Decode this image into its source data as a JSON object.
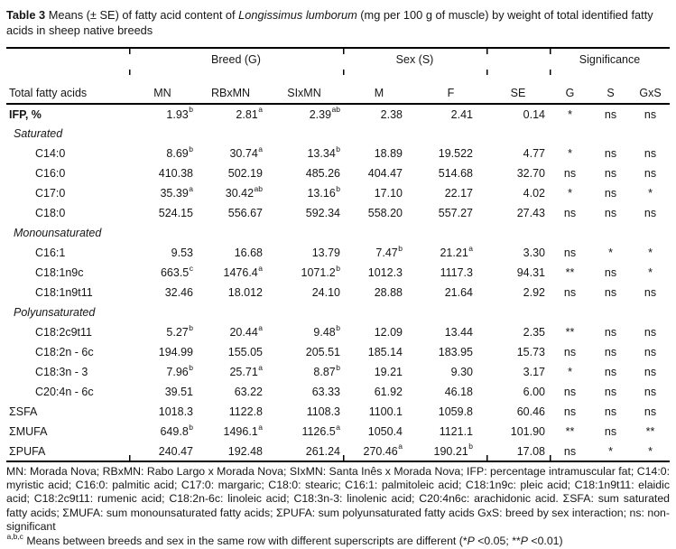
{
  "colors": {
    "text": "#161616",
    "rule": "#000000",
    "background": "#ffffff"
  },
  "title": {
    "segments": [
      {
        "t": "Table 3 ",
        "b": true
      },
      {
        "t": "Means (± SE) of fatty acid content of "
      },
      {
        "t": "Longissimus lumborum",
        "i": true
      },
      {
        "t": " (mg per 100 g of muscle) by weight of total identified fatty acids in sheep native breeds"
      }
    ]
  },
  "table": {
    "groups": [
      {
        "label": "",
        "span": 1
      },
      {
        "label": "Breed (G)",
        "span": 3
      },
      {
        "label": "Sex (S)",
        "span": 2
      },
      {
        "label": "",
        "span": 1
      },
      {
        "label": "Significance",
        "span": 3
      }
    ],
    "columns": [
      "Total fatty acids",
      "MN",
      "RBxMN",
      "SIxMN",
      "M",
      "F",
      "SE",
      "G",
      "S",
      "GxS"
    ],
    "rows": [
      {
        "type": "data",
        "label": "IFP, %",
        "bold": true,
        "cells": [
          {
            "v": "1.93",
            "sup": "b"
          },
          {
            "v": "2.81",
            "sup": "a"
          },
          {
            "v": "2.39",
            "sup": "ab"
          },
          {
            "v": "2.38"
          },
          {
            "v": "2.41"
          },
          {
            "v": "0.14"
          },
          {
            "v": "*"
          },
          {
            "v": "ns"
          },
          {
            "v": "ns"
          }
        ]
      },
      {
        "type": "section",
        "label": "Saturated"
      },
      {
        "type": "data",
        "label": "C14:0",
        "indent": true,
        "cells": [
          {
            "v": "8.69",
            "sup": "b"
          },
          {
            "v": "30.74",
            "sup": "a"
          },
          {
            "v": "13.34",
            "sup": "b"
          },
          {
            "v": "18.89"
          },
          {
            "v": "19.522"
          },
          {
            "v": "4.77"
          },
          {
            "v": "*"
          },
          {
            "v": "ns"
          },
          {
            "v": "ns"
          }
        ]
      },
      {
        "type": "data",
        "label": "C16:0",
        "indent": true,
        "cells": [
          {
            "v": "410.38"
          },
          {
            "v": "502.19"
          },
          {
            "v": "485.26"
          },
          {
            "v": "404.47"
          },
          {
            "v": "514.68"
          },
          {
            "v": "32.70"
          },
          {
            "v": "ns"
          },
          {
            "v": "ns"
          },
          {
            "v": "ns"
          }
        ]
      },
      {
        "type": "data",
        "label": "C17:0",
        "indent": true,
        "cells": [
          {
            "v": "35.39",
            "sup": "a"
          },
          {
            "v": "30.42",
            "sup": "ab"
          },
          {
            "v": "13.16",
            "sup": "b"
          },
          {
            "v": "17.10"
          },
          {
            "v": "22.17"
          },
          {
            "v": "4.02"
          },
          {
            "v": "*"
          },
          {
            "v": "ns"
          },
          {
            "v": "*"
          }
        ]
      },
      {
        "type": "data",
        "label": "C18:0",
        "indent": true,
        "cells": [
          {
            "v": "524.15"
          },
          {
            "v": "556.67"
          },
          {
            "v": "592.34"
          },
          {
            "v": "558.20"
          },
          {
            "v": "557.27"
          },
          {
            "v": "27.43"
          },
          {
            "v": "ns"
          },
          {
            "v": "ns"
          },
          {
            "v": "ns"
          }
        ]
      },
      {
        "type": "section",
        "label": "Monounsaturated"
      },
      {
        "type": "data",
        "label": "C16:1",
        "indent": true,
        "cells": [
          {
            "v": "9.53"
          },
          {
            "v": "16.68"
          },
          {
            "v": "13.79"
          },
          {
            "v": "7.47",
            "sup": "b"
          },
          {
            "v": "21.21",
            "sup": "a"
          },
          {
            "v": "3.30"
          },
          {
            "v": "ns"
          },
          {
            "v": "*"
          },
          {
            "v": "*"
          }
        ]
      },
      {
        "type": "data",
        "label": "C18:1n9c",
        "indent": true,
        "cells": [
          {
            "v": "663.5",
            "sup": "c"
          },
          {
            "v": "1476.4",
            "sup": "a"
          },
          {
            "v": "1071.2",
            "sup": "b"
          },
          {
            "v": "1012.3"
          },
          {
            "v": "1117.3"
          },
          {
            "v": "94.31"
          },
          {
            "v": "**"
          },
          {
            "v": "ns"
          },
          {
            "v": "*"
          }
        ]
      },
      {
        "type": "data",
        "label": "C18:1n9t11",
        "indent": true,
        "cells": [
          {
            "v": "32.46"
          },
          {
            "v": "18.012"
          },
          {
            "v": "24.10"
          },
          {
            "v": "28.88"
          },
          {
            "v": "21.64"
          },
          {
            "v": "2.92"
          },
          {
            "v": "ns"
          },
          {
            "v": "ns"
          },
          {
            "v": "ns"
          }
        ]
      },
      {
        "type": "section",
        "label": "Polyunsaturated"
      },
      {
        "type": "data",
        "label": "C18:2c9t11",
        "indent": true,
        "cells": [
          {
            "v": "5.27",
            "sup": "b"
          },
          {
            "v": "20.44",
            "sup": "a"
          },
          {
            "v": "9.48",
            "sup": "b"
          },
          {
            "v": "12.09"
          },
          {
            "v": "13.44"
          },
          {
            "v": "2.35"
          },
          {
            "v": "**"
          },
          {
            "v": "ns"
          },
          {
            "v": "ns"
          }
        ]
      },
      {
        "type": "data",
        "label": "C18:2n - 6c",
        "indent": true,
        "cells": [
          {
            "v": "194.99"
          },
          {
            "v": "155.05"
          },
          {
            "v": "205.51"
          },
          {
            "v": "185.14"
          },
          {
            "v": "183.95"
          },
          {
            "v": "15.73"
          },
          {
            "v": "ns"
          },
          {
            "v": "ns"
          },
          {
            "v": "ns"
          }
        ]
      },
      {
        "type": "data",
        "label": "C18:3n - 3",
        "indent": true,
        "cells": [
          {
            "v": "7.96",
            "sup": "b"
          },
          {
            "v": "25.71",
            "sup": "a"
          },
          {
            "v": "8.87",
            "sup": "b"
          },
          {
            "v": "19.21"
          },
          {
            "v": "9.30"
          },
          {
            "v": "3.17"
          },
          {
            "v": "*"
          },
          {
            "v": "ns"
          },
          {
            "v": "ns"
          }
        ]
      },
      {
        "type": "data",
        "label": "C20:4n - 6c",
        "indent": true,
        "cells": [
          {
            "v": "39.51"
          },
          {
            "v": "63.22"
          },
          {
            "v": "63.33"
          },
          {
            "v": "61.92"
          },
          {
            "v": "46.18"
          },
          {
            "v": "6.00"
          },
          {
            "v": "ns"
          },
          {
            "v": "ns"
          },
          {
            "v": "ns"
          }
        ]
      },
      {
        "type": "data",
        "label": "ΣSFA",
        "cells": [
          {
            "v": "1018.3"
          },
          {
            "v": "1122.8"
          },
          {
            "v": "1108.3"
          },
          {
            "v": "1100.1"
          },
          {
            "v": "1059.8"
          },
          {
            "v": "60.46"
          },
          {
            "v": "ns"
          },
          {
            "v": "ns"
          },
          {
            "v": "ns"
          }
        ]
      },
      {
        "type": "data",
        "label": "ΣMUFA",
        "cells": [
          {
            "v": "649.8",
            "sup": "b"
          },
          {
            "v": "1496.1",
            "sup": "a"
          },
          {
            "v": "1126.5",
            "sup": "a"
          },
          {
            "v": "1050.4"
          },
          {
            "v": "1121.1"
          },
          {
            "v": "101.90"
          },
          {
            "v": "**"
          },
          {
            "v": "ns"
          },
          {
            "v": "**"
          }
        ]
      },
      {
        "type": "data",
        "label": "ΣPUFA",
        "cells": [
          {
            "v": "240.47"
          },
          {
            "v": "192.48"
          },
          {
            "v": "261.24"
          },
          {
            "v": "270.46",
            "sup": "a"
          },
          {
            "v": "190.21",
            "sup": "b"
          },
          {
            "v": "17.08"
          },
          {
            "v": "ns"
          },
          {
            "v": "*"
          },
          {
            "v": "*"
          }
        ]
      }
    ]
  },
  "footnotes": {
    "abbreviations": "MN: Morada Nova; RBxMN: Rabo Largo x Morada Nova; SIxMN: Santa Inês x Morada Nova; IFP: percentage intramuscular fat; C14:0: myristic acid; C16:0: palmitic acid; C17:0: margaric; C18:0: stearic; C16:1: palmitoleic acid; C18:1n9c: pleic acid; C18:1n9t11: elaidic acid; C18:2c9t11: rumenic acid; C18:2n-6c: linoleic acid; C18:3n-3: linolenic acid; C20:4n6c: arachidonic acid. ΣSFA: sum saturated fatty acids; ΣMUFA: sum monounsaturated fatty acids; ΣPUFA: sum polyunsaturated fatty acids GxS: breed by sex interaction; ns: non-significant",
    "significance_segments": [
      {
        "t": "a,b,c",
        "sup": true
      },
      {
        "t": " Means between breeds and sex in the same row with different superscripts are different (*"
      },
      {
        "t": "P",
        "i": true
      },
      {
        "t": " <0.05; **"
      },
      {
        "t": "P",
        "i": true
      },
      {
        "t": " <0.01)"
      }
    ]
  }
}
